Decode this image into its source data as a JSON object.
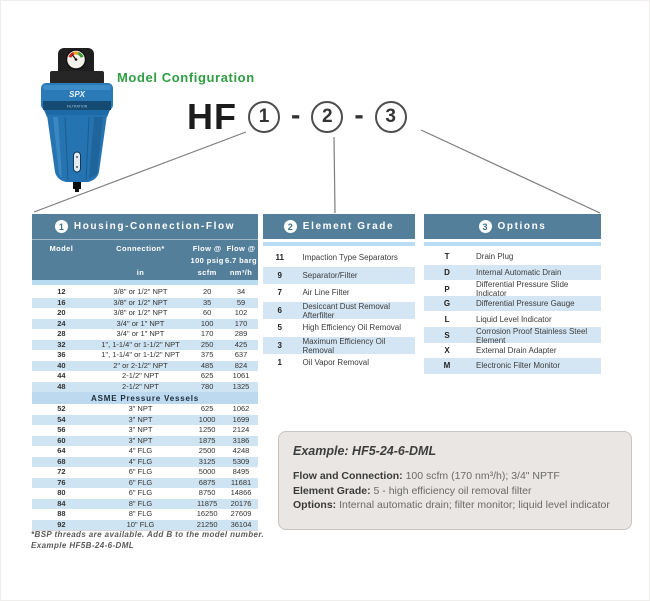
{
  "page": {
    "config_title": "Model Configuration",
    "model_prefix": "HF",
    "dash": "-",
    "placeholders": [
      "1",
      "2",
      "3"
    ]
  },
  "product": {
    "brand": "SPX",
    "band_label": "FILTRATION"
  },
  "colors": {
    "header_slate": "#547f9b",
    "row_alt_blue": "#cfe4f3",
    "strip_blue": "#b9dcf2",
    "accent_green": "#2f9e43",
    "example_bg": "#e9e6e3"
  },
  "housing_table": {
    "number": "1",
    "title": "Housing-Connection-Flow",
    "columns": {
      "model": "Model",
      "connection": "Connection*",
      "connection_unit": "in",
      "flow1_l1": "Flow @",
      "flow1_l2": "100 psig",
      "flow1_l3": "scfm",
      "flow2_l1": "Flow @",
      "flow2_l2": "6.7 barg",
      "flow2_l3": "nm³/h"
    },
    "rows": [
      {
        "model": "12",
        "connection": "3/8\" or 1/2\" NPT",
        "flow_scfm": "20",
        "flow_nm3h": "34"
      },
      {
        "model": "16",
        "connection": "3/8\" or 1/2\" NPT",
        "flow_scfm": "35",
        "flow_nm3h": "59"
      },
      {
        "model": "20",
        "connection": "3/8\" or 1/2\" NPT",
        "flow_scfm": "60",
        "flow_nm3h": "102"
      },
      {
        "model": "24",
        "connection": "3/4\" or 1\" NPT",
        "flow_scfm": "100",
        "flow_nm3h": "170"
      },
      {
        "model": "28",
        "connection": "3/4\" or 1\" NPT",
        "flow_scfm": "170",
        "flow_nm3h": "289"
      },
      {
        "model": "32",
        "connection": "1\", 1-1/4\" or 1-1/2\" NPT",
        "flow_scfm": "250",
        "flow_nm3h": "425"
      },
      {
        "model": "36",
        "connection": "1\", 1-1/4\" or 1-1/2\" NPT",
        "flow_scfm": "375",
        "flow_nm3h": "637"
      },
      {
        "model": "40",
        "connection": "2\" or 2-1/2\" NPT",
        "flow_scfm": "485",
        "flow_nm3h": "824"
      },
      {
        "model": "44",
        "connection": "2-1/2\" NPT",
        "flow_scfm": "625",
        "flow_nm3h": "1061"
      },
      {
        "model": "48",
        "connection": "2-1/2\" NPT",
        "flow_scfm": "780",
        "flow_nm3h": "1325"
      }
    ],
    "section_header": "ASME Pressure Vessels",
    "asme_rows": [
      {
        "model": "52",
        "connection": "3\" NPT",
        "flow_scfm": "625",
        "flow_nm3h": "1062"
      },
      {
        "model": "54",
        "connection": "3\" NPT",
        "flow_scfm": "1000",
        "flow_nm3h": "1699"
      },
      {
        "model": "56",
        "connection": "3\" NPT",
        "flow_scfm": "1250",
        "flow_nm3h": "2124"
      },
      {
        "model": "60",
        "connection": "3\" NPT",
        "flow_scfm": "1875",
        "flow_nm3h": "3186"
      },
      {
        "model": "64",
        "connection": "4\" FLG",
        "flow_scfm": "2500",
        "flow_nm3h": "4248"
      },
      {
        "model": "68",
        "connection": "4\" FLG",
        "flow_scfm": "3125",
        "flow_nm3h": "5309"
      },
      {
        "model": "72",
        "connection": "6\" FLG",
        "flow_scfm": "5000",
        "flow_nm3h": "8495"
      },
      {
        "model": "76",
        "connection": "6\" FLG",
        "flow_scfm": "6875",
        "flow_nm3h": "11681"
      },
      {
        "model": "80",
        "connection": "6\" FLG",
        "flow_scfm": "8750",
        "flow_nm3h": "14866"
      },
      {
        "model": "84",
        "connection": "8\" FLG",
        "flow_scfm": "11875",
        "flow_nm3h": "20176"
      },
      {
        "model": "88",
        "connection": "8\" FLG",
        "flow_scfm": "16250",
        "flow_nm3h": "27609"
      },
      {
        "model": "92",
        "connection": "10\" FLG",
        "flow_scfm": "21250",
        "flow_nm3h": "36104"
      }
    ]
  },
  "element_table": {
    "number": "2",
    "title": "Element Grade",
    "rows": [
      {
        "code": "11",
        "label": "Impaction Type Separators"
      },
      {
        "code": "9",
        "label": "Separator/Filter"
      },
      {
        "code": "7",
        "label": "Air Line Filter"
      },
      {
        "code": "6",
        "label": "Desiccant Dust Removal Afterfilter"
      },
      {
        "code": "5",
        "label": "High Efficiency Oil Removal"
      },
      {
        "code": "3",
        "label": "Maximum Efficiency Oil Removal"
      },
      {
        "code": "1",
        "label": "Oil Vapor Removal"
      }
    ]
  },
  "options_table": {
    "number": "3",
    "title": "Options",
    "rows": [
      {
        "code": "T",
        "label": "Drain Plug"
      },
      {
        "code": "D",
        "label": "Internal Automatic Drain"
      },
      {
        "code": "P",
        "label": "Differential Pressure Slide Indicator"
      },
      {
        "code": "G",
        "label": "Differential Pressure Gauge"
      },
      {
        "code": "L",
        "label": "Liquid Level Indicator"
      },
      {
        "code": "S",
        "label": "Corrosion Proof Stainless Steel Element"
      },
      {
        "code": "X",
        "label": "External Drain Adapter"
      },
      {
        "code": "M",
        "label": "Electronic Filter Monitor"
      }
    ]
  },
  "footnote": {
    "line1": "*BSP threads are available. Add B to the model number.",
    "line2": "Example HF5B-24-6-DML"
  },
  "example": {
    "title": "Example: HF5-24-6-DML",
    "lines": [
      {
        "label": "Flow and Connection:",
        "value": " 100 scfm (170 nm³/h); 3/4\" NPTF"
      },
      {
        "label": "Element Grade:",
        "value": " 5 - high efficiency oil removal filter"
      },
      {
        "label": "Options:",
        "value": " Internal automatic drain; filter monitor; liquid level indicator"
      }
    ]
  }
}
